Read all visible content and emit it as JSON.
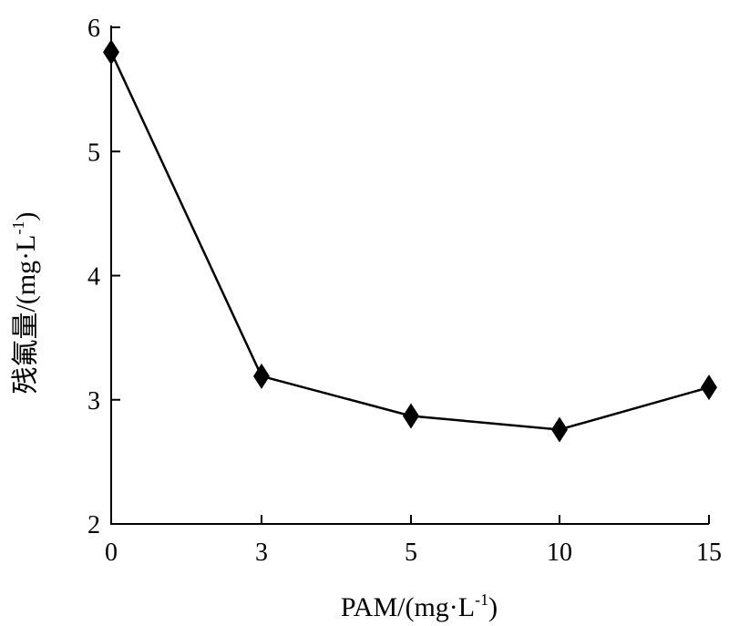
{
  "chart_data": {
    "type": "line",
    "title": "",
    "xlabel": "PAM/(mg·L",
    "xlabel_sup": "-1",
    "xlabel_end": ")",
    "ylabel": "残氟量/(mg·L",
    "ylabel_sup": "-1",
    "ylabel_end": ")",
    "categories": [
      "0",
      "3",
      "5",
      "10",
      "15"
    ],
    "series": [
      {
        "values": [
          5.8,
          3.19,
          2.87,
          2.76,
          3.1
        ],
        "color": "#000000",
        "marker": "diamond"
      }
    ],
    "ylim": [
      2,
      6
    ],
    "y_ticks": [
      "2",
      "3",
      "4",
      "5",
      "6"
    ],
    "grid": false,
    "legend": "none"
  }
}
